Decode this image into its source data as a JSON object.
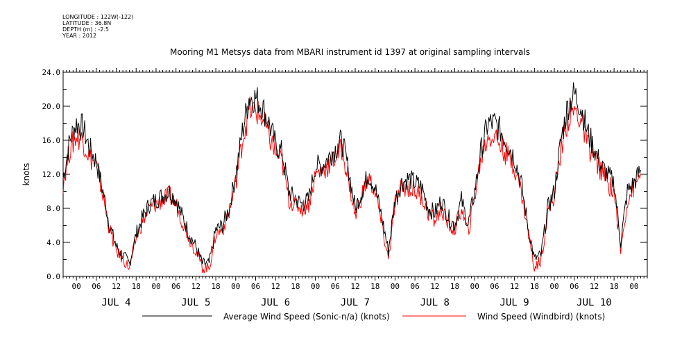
{
  "metadata": [
    "LONGITUDE : 122W(-122)",
    "LATITUDE : 36.8N",
    "DEPTH (m) : -2.5",
    "YEAR : 2012"
  ],
  "chart_data": {
    "type": "line",
    "title": "Mooring M1 Metsys data from MBARI instrument id 1397 at original sampling intervals",
    "ylabel": "knots",
    "xlabel": "",
    "ylim": [
      0,
      24
    ],
    "yticks": [
      "0.0",
      "4.0",
      "8.0",
      "12.0",
      "16.0",
      "20.0",
      "24.0"
    ],
    "xlim_hours": [
      -4,
      172
    ],
    "hour_tick_labels": [
      "00",
      "06",
      "12",
      "18"
    ],
    "day_labels": [
      "JUL  4",
      "JUL  5",
      "JUL  6",
      "JUL  7",
      "JUL  8",
      "JUL  9",
      "JUL 10"
    ],
    "hours": [
      -4,
      -2,
      0,
      2,
      4,
      6,
      8,
      10,
      12,
      14,
      16,
      18,
      20,
      22,
      24,
      26,
      28,
      30,
      32,
      34,
      36,
      38,
      40,
      42,
      44,
      46,
      48,
      50,
      52,
      54,
      56,
      58,
      60,
      62,
      64,
      66,
      68,
      70,
      72,
      74,
      76,
      78,
      80,
      82,
      84,
      86,
      88,
      90,
      92,
      94,
      96,
      98,
      100,
      102,
      104,
      106,
      108,
      110,
      112,
      114,
      116,
      118,
      120,
      122,
      124,
      126,
      128,
      130,
      132,
      134,
      136,
      138,
      140,
      142,
      144,
      146,
      148,
      150,
      152,
      154,
      156,
      158,
      160,
      162,
      164,
      166,
      168,
      170
    ],
    "series": [
      {
        "name": "Average Wind Speed (Sonic-n/a) (knots)",
        "color": "#000000",
        "values": [
          11.5,
          16,
          18,
          17.5,
          15,
          13.5,
          10,
          6,
          3.5,
          2.5,
          1.5,
          5,
          7,
          8.5,
          9,
          9.5,
          10,
          9,
          7,
          5,
          3.5,
          1.5,
          1.5,
          5.5,
          6,
          8,
          12,
          17,
          21,
          21,
          20,
          18,
          15.5,
          14.5,
          10,
          9,
          8.5,
          9,
          13,
          13,
          14,
          15,
          16,
          12.5,
          8,
          10,
          12,
          10.5,
          7,
          3,
          9,
          11,
          11.5,
          11,
          10.5,
          8,
          7.5,
          9,
          7,
          6,
          9,
          6,
          10,
          15,
          18,
          18,
          17,
          15.5,
          14,
          11,
          6,
          2,
          2.5,
          8,
          10,
          16,
          20,
          21.5,
          20,
          17,
          15,
          13,
          12,
          11,
          4,
          10,
          11,
          12.5
        ]
      },
      {
        "name": "Wind Speed (Windbird) (knots)",
        "color": "#ff0000",
        "values": [
          11,
          15,
          16.5,
          16,
          14,
          13,
          9.5,
          5.5,
          3,
          2,
          1,
          4.5,
          6.5,
          8,
          8.5,
          9,
          9.5,
          8.5,
          6.5,
          4.5,
          3,
          1,
          1,
          5,
          5.5,
          7.5,
          11,
          16,
          19.5,
          19.5,
          18.5,
          16.5,
          14.5,
          13.5,
          9,
          8.5,
          8,
          8.5,
          12,
          12.5,
          13,
          14,
          15,
          11.5,
          7,
          9.5,
          11.5,
          10,
          6,
          2,
          8.5,
          10.5,
          10.5,
          10,
          9.5,
          7.5,
          6.5,
          8,
          6,
          5.5,
          8,
          5,
          9.5,
          14,
          16.5,
          16.5,
          15.5,
          14,
          13,
          10,
          5.5,
          1,
          2,
          7.5,
          9.5,
          15,
          18.5,
          19.5,
          18.5,
          15.5,
          14,
          12.5,
          11,
          10,
          3,
          9,
          10.5,
          12
        ]
      }
    ],
    "legend_placement": "bottom"
  }
}
